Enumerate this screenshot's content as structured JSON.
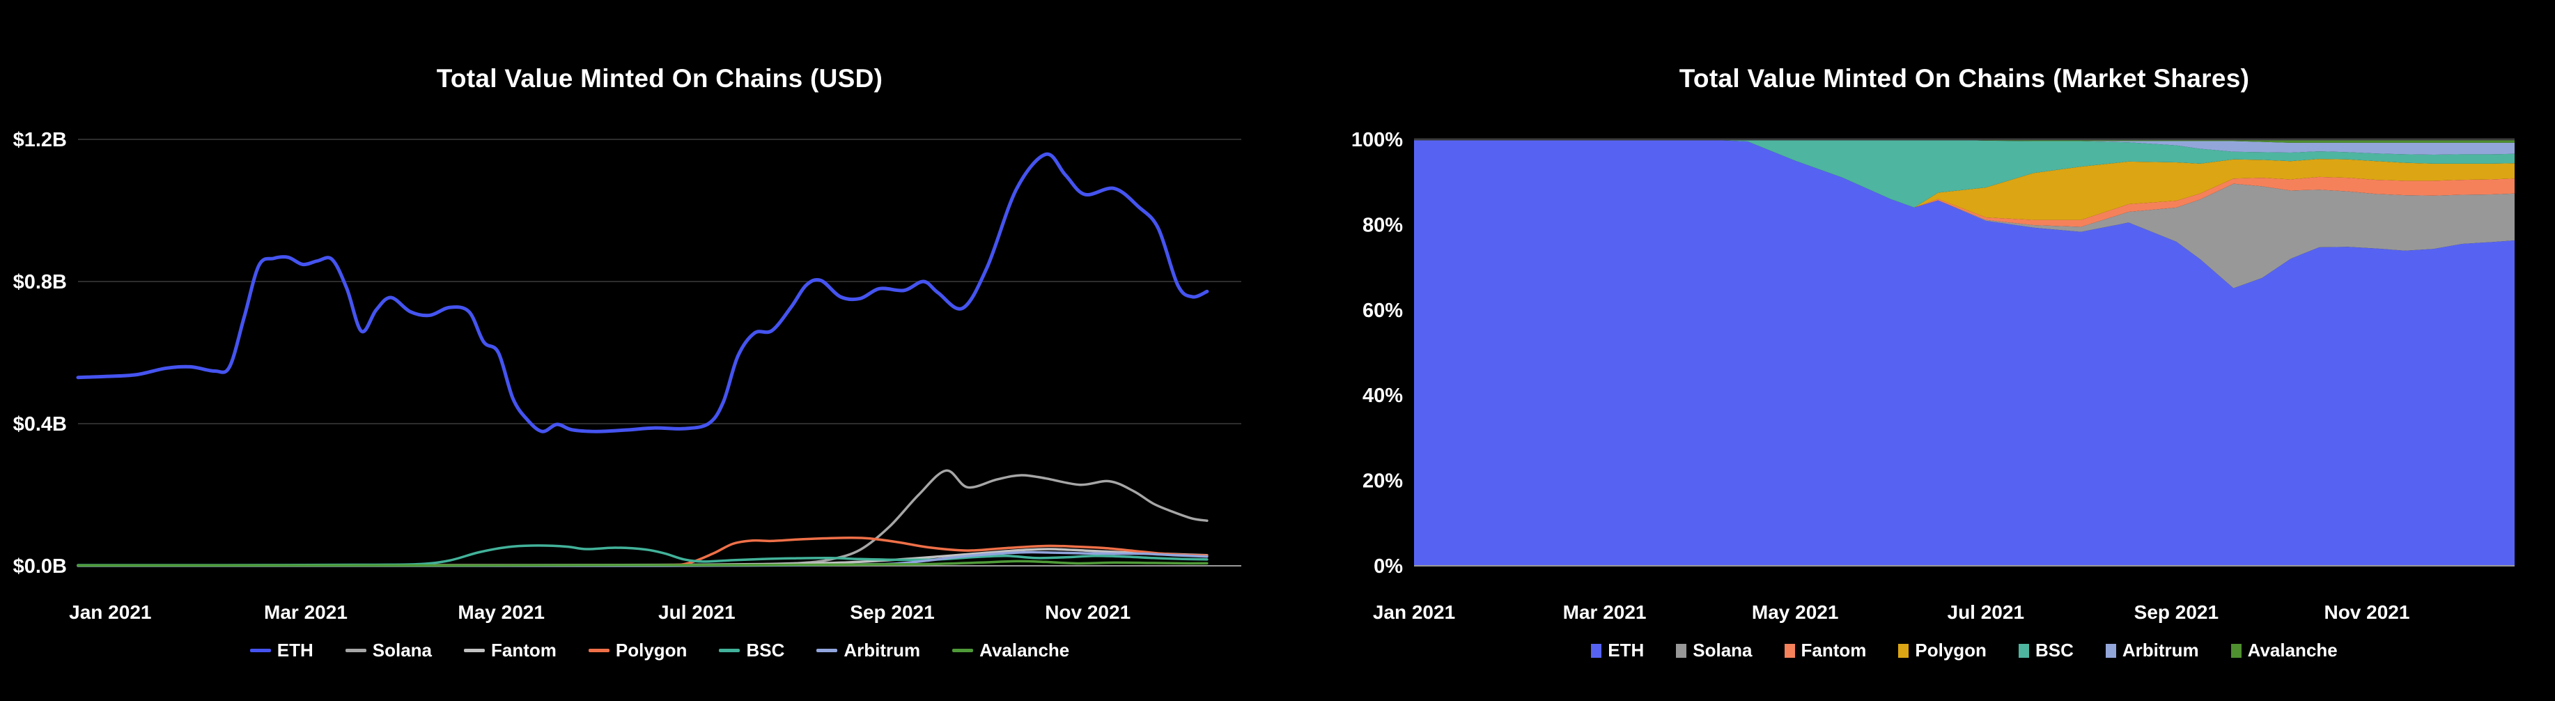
{
  "chart_data": [
    {
      "type": "line",
      "title": "Total Value Minted On Chains (USD)",
      "xlabel": "",
      "ylabel": "",
      "x_unit": "months since Jan 2021 (0 = Jan 2021)",
      "y_unit": "USD billions",
      "ylim": [
        0,
        1.2
      ],
      "grid": "horizontal",
      "legend_position": "bottom",
      "x_tick_labels": [
        "Jan 2021",
        "Mar 2021",
        "May 2021",
        "Jul 2021",
        "Sep 2021",
        "Nov 2021"
      ],
      "y_tick_values": [
        0,
        0.4,
        0.8,
        1.2
      ],
      "y_tick_labels": [
        "$0.0B",
        "$0.4B",
        "$0.8B",
        "$1.2B"
      ],
      "series": [
        {
          "name": "ETH",
          "color": "#4554f0",
          "points": [
            [
              0,
              0.53
            ],
            [
              0.3,
              0.533
            ],
            [
              0.6,
              0.538
            ],
            [
              0.9,
              0.556
            ],
            [
              1.15,
              0.56
            ],
            [
              1.4,
              0.548
            ],
            [
              1.55,
              0.56
            ],
            [
              1.7,
              0.7
            ],
            [
              1.85,
              0.845
            ],
            [
              2.0,
              0.865
            ],
            [
              2.15,
              0.868
            ],
            [
              2.3,
              0.848
            ],
            [
              2.45,
              0.858
            ],
            [
              2.6,
              0.862
            ],
            [
              2.75,
              0.78
            ],
            [
              2.9,
              0.66
            ],
            [
              3.05,
              0.72
            ],
            [
              3.2,
              0.755
            ],
            [
              3.4,
              0.715
            ],
            [
              3.6,
              0.705
            ],
            [
              3.8,
              0.727
            ],
            [
              4.0,
              0.715
            ],
            [
              4.15,
              0.63
            ],
            [
              4.3,
              0.6
            ],
            [
              4.45,
              0.47
            ],
            [
              4.6,
              0.41
            ],
            [
              4.75,
              0.378
            ],
            [
              4.9,
              0.398
            ],
            [
              5.05,
              0.383
            ],
            [
              5.3,
              0.378
            ],
            [
              5.6,
              0.382
            ],
            [
              5.9,
              0.388
            ],
            [
              6.2,
              0.386
            ],
            [
              6.45,
              0.4
            ],
            [
              6.6,
              0.46
            ],
            [
              6.75,
              0.59
            ],
            [
              6.92,
              0.655
            ],
            [
              7.1,
              0.662
            ],
            [
              7.3,
              0.73
            ],
            [
              7.45,
              0.79
            ],
            [
              7.6,
              0.803
            ],
            [
              7.8,
              0.757
            ],
            [
              8.0,
              0.752
            ],
            [
              8.2,
              0.78
            ],
            [
              8.45,
              0.775
            ],
            [
              8.65,
              0.8
            ],
            [
              8.8,
              0.768
            ],
            [
              9.05,
              0.725
            ],
            [
              9.3,
              0.84
            ],
            [
              9.6,
              1.06
            ],
            [
              9.9,
              1.158
            ],
            [
              10.1,
              1.1
            ],
            [
              10.3,
              1.045
            ],
            [
              10.6,
              1.062
            ],
            [
              10.85,
              1.01
            ],
            [
              11.05,
              0.95
            ],
            [
              11.25,
              0.79
            ],
            [
              11.4,
              0.757
            ],
            [
              11.55,
              0.772
            ]
          ]
        },
        {
          "name": "Solana",
          "color": "#a6a6a6",
          "points": [
            [
              0,
              0.001
            ],
            [
              2,
              0.001
            ],
            [
              4,
              0.002
            ],
            [
              5.5,
              0.002
            ],
            [
              6.3,
              0.003
            ],
            [
              7.0,
              0.005
            ],
            [
              7.4,
              0.008
            ],
            [
              7.7,
              0.018
            ],
            [
              8.0,
              0.045
            ],
            [
              8.3,
              0.11
            ],
            [
              8.6,
              0.2
            ],
            [
              8.88,
              0.268
            ],
            [
              9.1,
              0.221
            ],
            [
              9.4,
              0.243
            ],
            [
              9.65,
              0.255
            ],
            [
              9.9,
              0.246
            ],
            [
              10.25,
              0.228
            ],
            [
              10.55,
              0.238
            ],
            [
              10.8,
              0.21
            ],
            [
              11.0,
              0.175
            ],
            [
              11.2,
              0.152
            ],
            [
              11.4,
              0.133
            ],
            [
              11.55,
              0.127
            ]
          ]
        },
        {
          "name": "Fantom",
          "color": "#c2c2c2",
          "points": [
            [
              0,
              0.001
            ],
            [
              3,
              0.001
            ],
            [
              5,
              0.002
            ],
            [
              6.5,
              0.003
            ],
            [
              7.2,
              0.005
            ],
            [
              7.8,
              0.009
            ],
            [
              8.3,
              0.016
            ],
            [
              8.8,
              0.026
            ],
            [
              9.3,
              0.037
            ],
            [
              9.7,
              0.045
            ],
            [
              9.95,
              0.047
            ],
            [
              10.3,
              0.043
            ],
            [
              10.7,
              0.038
            ],
            [
              11.0,
              0.035
            ],
            [
              11.3,
              0.032
            ],
            [
              11.55,
              0.03
            ]
          ]
        },
        {
          "name": "Polygon",
          "color": "#ef7048",
          "points": [
            [
              0,
              0.001
            ],
            [
              2.5,
              0.001
            ],
            [
              5.0,
              0.001
            ],
            [
              6.0,
              0.002
            ],
            [
              6.25,
              0.008
            ],
            [
              6.5,
              0.035
            ],
            [
              6.7,
              0.062
            ],
            [
              6.9,
              0.071
            ],
            [
              7.1,
              0.07
            ],
            [
              7.35,
              0.074
            ],
            [
              7.6,
              0.077
            ],
            [
              7.9,
              0.079
            ],
            [
              8.1,
              0.077
            ],
            [
              8.4,
              0.066
            ],
            [
              8.7,
              0.052
            ],
            [
              9.1,
              0.043
            ],
            [
              9.5,
              0.05
            ],
            [
              9.9,
              0.056
            ],
            [
              10.2,
              0.054
            ],
            [
              10.5,
              0.05
            ],
            [
              10.8,
              0.042
            ],
            [
              11.1,
              0.034
            ],
            [
              11.3,
              0.031
            ],
            [
              11.55,
              0.029
            ]
          ]
        },
        {
          "name": "BSC",
          "color": "#42b29a",
          "points": [
            [
              0,
              0.002
            ],
            [
              1.5,
              0.002
            ],
            [
              3.0,
              0.003
            ],
            [
              3.5,
              0.005
            ],
            [
              3.8,
              0.015
            ],
            [
              4.1,
              0.038
            ],
            [
              4.4,
              0.053
            ],
            [
              4.7,
              0.057
            ],
            [
              5.0,
              0.054
            ],
            [
              5.2,
              0.047
            ],
            [
              5.5,
              0.051
            ],
            [
              5.8,
              0.046
            ],
            [
              6.0,
              0.035
            ],
            [
              6.2,
              0.018
            ],
            [
              6.4,
              0.012
            ],
            [
              6.7,
              0.016
            ],
            [
              7.0,
              0.019
            ],
            [
              7.3,
              0.021
            ],
            [
              7.7,
              0.022
            ],
            [
              8.0,
              0.019
            ],
            [
              8.4,
              0.017
            ],
            [
              8.8,
              0.018
            ],
            [
              9.2,
              0.025
            ],
            [
              9.5,
              0.028
            ],
            [
              9.8,
              0.022
            ],
            [
              10.1,
              0.024
            ],
            [
              10.4,
              0.028
            ],
            [
              10.7,
              0.026
            ],
            [
              11.0,
              0.022
            ],
            [
              11.3,
              0.019
            ],
            [
              11.55,
              0.018
            ]
          ]
        },
        {
          "name": "Arbitrum",
          "color": "#92a6de",
          "points": [
            [
              0,
              0.0
            ],
            [
              3,
              0.0
            ],
            [
              6,
              0.0
            ],
            [
              7.0,
              0.001
            ],
            [
              7.5,
              0.002
            ],
            [
              8.0,
              0.004
            ],
            [
              8.35,
              0.006
            ],
            [
              8.7,
              0.015
            ],
            [
              9.0,
              0.025
            ],
            [
              9.35,
              0.033
            ],
            [
              9.7,
              0.038
            ],
            [
              10.0,
              0.037
            ],
            [
              10.3,
              0.035
            ],
            [
              10.6,
              0.034
            ],
            [
              10.9,
              0.034
            ],
            [
              11.2,
              0.03
            ],
            [
              11.55,
              0.026
            ]
          ]
        },
        {
          "name": "Avalanche",
          "color": "#4f9a38",
          "points": [
            [
              0,
              0.001
            ],
            [
              2,
              0.001
            ],
            [
              4,
              0.001
            ],
            [
              5.5,
              0.002
            ],
            [
              6.5,
              0.002
            ],
            [
              7.5,
              0.003
            ],
            [
              8.2,
              0.004
            ],
            [
              8.7,
              0.005
            ],
            [
              9.2,
              0.009
            ],
            [
              9.6,
              0.013
            ],
            [
              9.9,
              0.011
            ],
            [
              10.2,
              0.007
            ],
            [
              10.6,
              0.009
            ],
            [
              11.0,
              0.008
            ],
            [
              11.3,
              0.007
            ],
            [
              11.55,
              0.007
            ]
          ]
        }
      ]
    },
    {
      "type": "area",
      "stacked": true,
      "normalized_percent": true,
      "title": "Total Value Minted On Chains (Market Shares)",
      "xlabel": "",
      "ylabel": "",
      "x_unit": "months since Jan 2021 (0 = Jan 2021)",
      "y_unit": "percent of total value minted",
      "ylim": [
        0,
        100
      ],
      "grid": "horizontal",
      "legend_position": "bottom",
      "x_tick_labels": [
        "Jan 2021",
        "Mar 2021",
        "May 2021",
        "Jul 2021",
        "Sep 2021",
        "Nov 2021"
      ],
      "y_tick_values": [
        0,
        20,
        40,
        60,
        80,
        100
      ],
      "y_tick_labels": [
        "0%",
        "20%",
        "40%",
        "60%",
        "80%",
        "100%"
      ],
      "x": [
        0,
        0.5,
        1,
        1.5,
        2,
        2.5,
        3,
        3.5,
        4,
        4.5,
        5,
        5.25,
        5.5,
        6,
        6.5,
        7,
        7.5,
        8,
        8.25,
        8.6,
        8.9,
        9.2,
        9.5,
        9.8,
        10.1,
        10.4,
        10.7,
        11,
        11.3,
        11.55
      ],
      "series": [
        {
          "name": "ETH",
          "color": "#5663f2",
          "values": [
            100,
            100,
            100,
            100,
            100,
            100,
            100,
            99.5,
            95,
            91,
            86,
            84,
            85.7,
            80.9,
            79.3,
            78.3,
            80.5,
            76,
            71.9,
            65.1,
            67.5,
            72,
            74.7,
            74.8,
            74.4,
            73.9,
            74.3,
            75.5,
            75.9,
            76.3
          ]
        },
        {
          "name": "Solana",
          "color": "#989898",
          "values": [
            0,
            0,
            0,
            0,
            0,
            0,
            0,
            0,
            0,
            0,
            0,
            0,
            0,
            0.2,
            0.6,
            1.2,
            2.5,
            8,
            14,
            24.5,
            21.5,
            16,
            13.5,
            13,
            12.8,
            13,
            12.5,
            11.5,
            11.2,
            11
          ]
        },
        {
          "name": "Fantom",
          "color": "#f5815b",
          "values": [
            0,
            0,
            0,
            0,
            0,
            0,
            0,
            0,
            0,
            0,
            0,
            0,
            0.3,
            0.6,
            1.2,
            1.6,
            1.8,
            1.6,
            1.4,
            1.2,
            2,
            2.6,
            3,
            3.2,
            3.3,
            3.4,
            3.5,
            3.5,
            3.5,
            3.5
          ]
        },
        {
          "name": "Polygon",
          "color": "#dca514",
          "values": [
            0,
            0,
            0,
            0,
            0,
            0,
            0,
            0,
            0,
            0,
            0,
            0,
            1.5,
            7,
            11,
            12.5,
            10,
            9,
            7,
            4.5,
            4.2,
            4.3,
            4.2,
            4.3,
            4.4,
            4.2,
            4,
            3.8,
            3.7,
            3.6
          ]
        },
        {
          "name": "BSC",
          "color": "#4eb5a0",
          "values": [
            0,
            0,
            0,
            0,
            0,
            0,
            0,
            0.5,
            5,
            9,
            14,
            16,
            12.5,
            11,
            7.5,
            6,
            4.5,
            4,
            3.5,
            1.8,
            1.8,
            2,
            1.8,
            1.7,
            1.8,
            2,
            2.1,
            2.2,
            2.2,
            2.2
          ]
        },
        {
          "name": "Arbitrum",
          "color": "#93a6da",
          "values": [
            0,
            0,
            0,
            0,
            0,
            0,
            0,
            0,
            0,
            0,
            0,
            0,
            0,
            0,
            0,
            0,
            0.3,
            1,
            1.8,
            2.5,
            2.4,
            2.3,
            2,
            2.2,
            2.5,
            2.7,
            2.8,
            2.7,
            2.7,
            2.6
          ]
        },
        {
          "name": "Avalanche",
          "color": "#4f8f2f",
          "values": [
            0,
            0,
            0,
            0,
            0,
            0,
            0,
            0,
            0,
            0,
            0,
            0,
            0,
            0.3,
            0.4,
            0.4,
            0.4,
            0.4,
            0.4,
            0.4,
            0.6,
            0.8,
            0.8,
            0.8,
            0.8,
            0.8,
            0.8,
            0.8,
            0.8,
            0.8
          ]
        }
      ]
    }
  ],
  "colors": {
    "background": "#000000",
    "text": "#ffffff",
    "gridline": "#2d2d2d",
    "axis_line": "#9a9a9a",
    "top_line": "#3c3c3c"
  }
}
